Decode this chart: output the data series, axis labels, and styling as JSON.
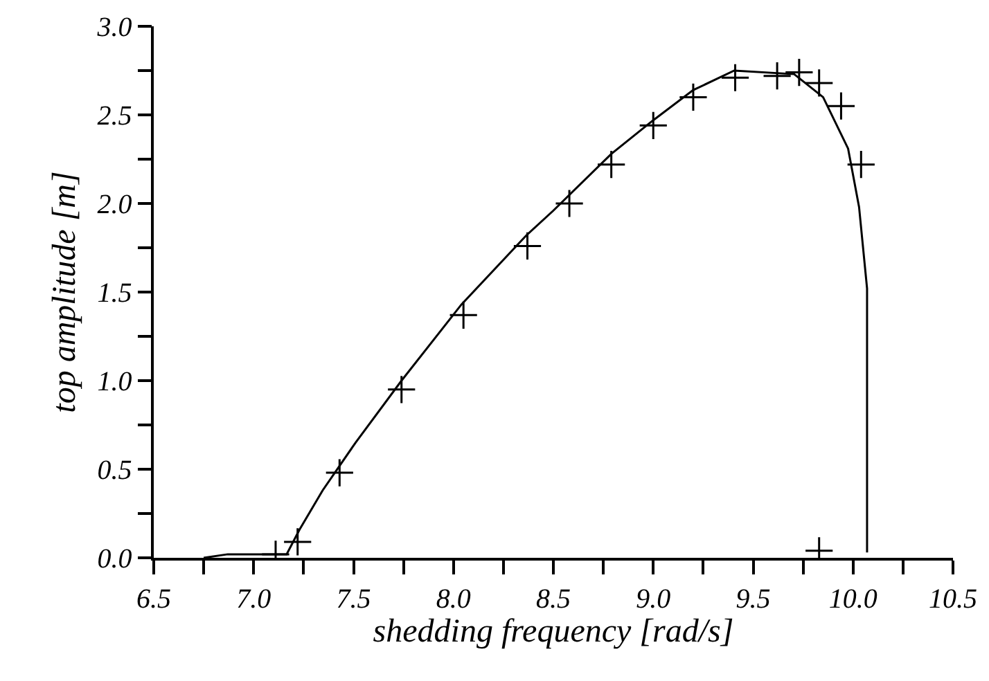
{
  "chart_data": {
    "type": "line",
    "xlabel": "shedding frequency [rad/s]",
    "ylabel": "top amplitude [m]",
    "xlim": [
      6.5,
      10.5
    ],
    "ylim": [
      0,
      3
    ],
    "xticks": [
      {
        "value": 6.5,
        "label": "6.5"
      },
      {
        "value": 6.75,
        "label": null
      },
      {
        "value": 7,
        "label": "7.0"
      },
      {
        "value": 7.25,
        "label": null
      },
      {
        "value": 7.5,
        "label": "7.5"
      },
      {
        "value": 7.75,
        "label": null
      },
      {
        "value": 8,
        "label": "8.0"
      },
      {
        "value": 8.25,
        "label": null
      },
      {
        "value": 8.5,
        "label": "8.5"
      },
      {
        "value": 8.75,
        "label": null
      },
      {
        "value": 9,
        "label": "9.0"
      },
      {
        "value": 9.25,
        "label": null
      },
      {
        "value": 9.5,
        "label": "9.5"
      },
      {
        "value": 9.75,
        "label": null
      },
      {
        "value": 10,
        "label": "10.0"
      },
      {
        "value": 10.25,
        "label": null
      },
      {
        "value": 10.5,
        "label": "10.5"
      }
    ],
    "yticks": [
      {
        "value": 0,
        "label": "0.0"
      },
      {
        "value": 0.25,
        "label": null
      },
      {
        "value": 0.5,
        "label": "0.5"
      },
      {
        "value": 0.75,
        "label": null
      },
      {
        "value": 1,
        "label": "1.0"
      },
      {
        "value": 1.25,
        "label": null
      },
      {
        "value": 1.5,
        "label": "1.5"
      },
      {
        "value": 1.75,
        "label": null
      },
      {
        "value": 2,
        "label": "2.0"
      },
      {
        "value": 2.25,
        "label": null
      },
      {
        "value": 2.5,
        "label": "2.5"
      },
      {
        "value": 2.75,
        "label": null
      },
      {
        "value": 3,
        "label": "3.0"
      }
    ],
    "grid": false,
    "series": [
      {
        "color": "#000000",
        "line_style": "solid",
        "marker": "none",
        "x": [
          6.75,
          6.87,
          7.165,
          7.23,
          7.345,
          7.51,
          7.74,
          8.04,
          8.365,
          8.5,
          8.79,
          9.0,
          9.2,
          9.405,
          9.705,
          9.85,
          9.975,
          10.03,
          10.07,
          10.07
        ],
        "values": [
          0,
          0.02,
          0.02,
          0.16,
          0.38,
          0.65,
          1.0,
          1.43,
          1.82,
          1.96,
          2.28,
          2.47,
          2.64,
          2.75,
          2.73,
          2.6,
          2.31,
          1.98,
          1.52,
          0.03
        ]
      },
      {
        "type": "scatter",
        "color": "#000000",
        "marker": "cross",
        "x": [
          7.11,
          7.22,
          7.43,
          7.74,
          8.05,
          8.37,
          8.58,
          8.79,
          9.0,
          9.2,
          9.41,
          9.62,
          9.73,
          9.83,
          9.94,
          10.04,
          9.83
        ],
        "values": [
          0.02,
          0.09,
          0.48,
          0.95,
          1.37,
          1.76,
          2.0,
          2.22,
          2.44,
          2.6,
          2.71,
          2.72,
          2.74,
          2.68,
          2.55,
          2.22,
          0.04
        ]
      }
    ]
  }
}
